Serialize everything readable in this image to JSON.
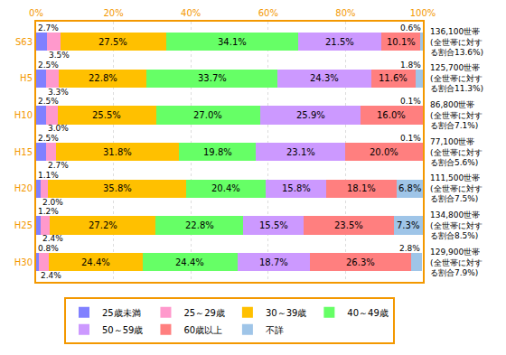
{
  "chart_data": {
    "type": "bar",
    "orientation": "horizontal",
    "stacked": true,
    "data_labels": true,
    "grid": true,
    "legend": "bottom",
    "categories": [
      "S63",
      "H5",
      "H10",
      "H15",
      "H20",
      "H25",
      "H30"
    ],
    "xlim": [
      0,
      100
    ],
    "xticks": [
      {
        "value": 0,
        "label": "0%"
      },
      {
        "value": 20,
        "label": "20%"
      },
      {
        "value": 40,
        "label": "40%"
      },
      {
        "value": 60,
        "label": "60%"
      },
      {
        "value": 80,
        "label": "80%"
      },
      {
        "value": 100,
        "label": "100%"
      }
    ],
    "series": [
      {
        "name": "25歳未満",
        "color": "#8080ff",
        "values": [
          2.7,
          2.5,
          2.5,
          2.5,
          1.1,
          1.2,
          0.8
        ],
        "value_labels": [
          "2.7%",
          "2.5%",
          "2.5%",
          "2.5%",
          "1.1%",
          "1.2%",
          "0.8%"
        ]
      },
      {
        "name": "25～29歳",
        "color": "#ff99cc",
        "values": [
          3.5,
          3.3,
          3.0,
          2.7,
          2.0,
          2.4,
          2.4
        ],
        "value_labels": [
          "3.5%",
          "3.3%",
          "3.0%",
          "2.7%",
          "2.0%",
          "2.4%",
          "2.4%"
        ]
      },
      {
        "name": "30～39歳",
        "color": "#ffc000",
        "values": [
          27.5,
          22.8,
          25.5,
          31.8,
          35.8,
          27.2,
          24.4
        ],
        "value_labels": [
          "27.5%",
          "22.8%",
          "25.5%",
          "31.8%",
          "35.8%",
          "27.2%",
          "24.4%"
        ]
      },
      {
        "name": "40～49歳",
        "color": "#66ff66",
        "values": [
          34.1,
          33.7,
          27.0,
          19.8,
          20.4,
          22.8,
          24.4
        ],
        "value_labels": [
          "34.1%",
          "33.7%",
          "27.0%",
          "19.8%",
          "20.4%",
          "22.8%",
          "24.4%"
        ]
      },
      {
        "name": "50～59歳",
        "color": "#cc99ff",
        "values": [
          21.5,
          24.3,
          25.9,
          23.1,
          15.8,
          15.5,
          18.7
        ],
        "value_labels": [
          "21.5%",
          "24.3%",
          "25.9%",
          "23.1%",
          "15.8%",
          "15.5%",
          "18.7%"
        ]
      },
      {
        "name": "60歳以上",
        "color": "#ff7f7f",
        "values": [
          10.1,
          11.6,
          16.0,
          20.0,
          18.1,
          23.5,
          26.3
        ],
        "value_labels": [
          "10.1%",
          "11.6%",
          "16.0%",
          "20.0%",
          "18.1%",
          "23.5%",
          "26.3%"
        ]
      },
      {
        "name": "不詳",
        "color": "#9fc5e8",
        "values": [
          0.6,
          1.8,
          0.1,
          0.1,
          6.8,
          7.3,
          2.8
        ],
        "value_labels": [
          "0.6%",
          "1.8%",
          "0.1%",
          "0.1%",
          "6.8%",
          "7.3%",
          "2.8%"
        ]
      }
    ],
    "annotations": [
      {
        "category": "S63",
        "lines": [
          "136,100世帯",
          "(全世帯に対す",
          "る割合13.6%)"
        ]
      },
      {
        "category": "H5",
        "lines": [
          "125,700世帯",
          "(全世帯に対す",
          "る割合11.3%)"
        ]
      },
      {
        "category": "H10",
        "lines": [
          "86,800世帯",
          "(全世帯に対す",
          "る割合7.1%)"
        ]
      },
      {
        "category": "H15",
        "lines": [
          "77,100世帯",
          "(全世帯に対す",
          "る割合5.6%)"
        ]
      },
      {
        "category": "H20",
        "lines": [
          "111,500世帯",
          "(全世帯に対す",
          "る割合7.5%)"
        ]
      },
      {
        "category": "H25",
        "lines": [
          "134,800世帯",
          "(全世帯に対す",
          "る割合8.5%)"
        ]
      },
      {
        "category": "H30",
        "lines": [
          "129,900世帯",
          "(全世帯に対す",
          "る割合7.9%)"
        ]
      }
    ]
  }
}
